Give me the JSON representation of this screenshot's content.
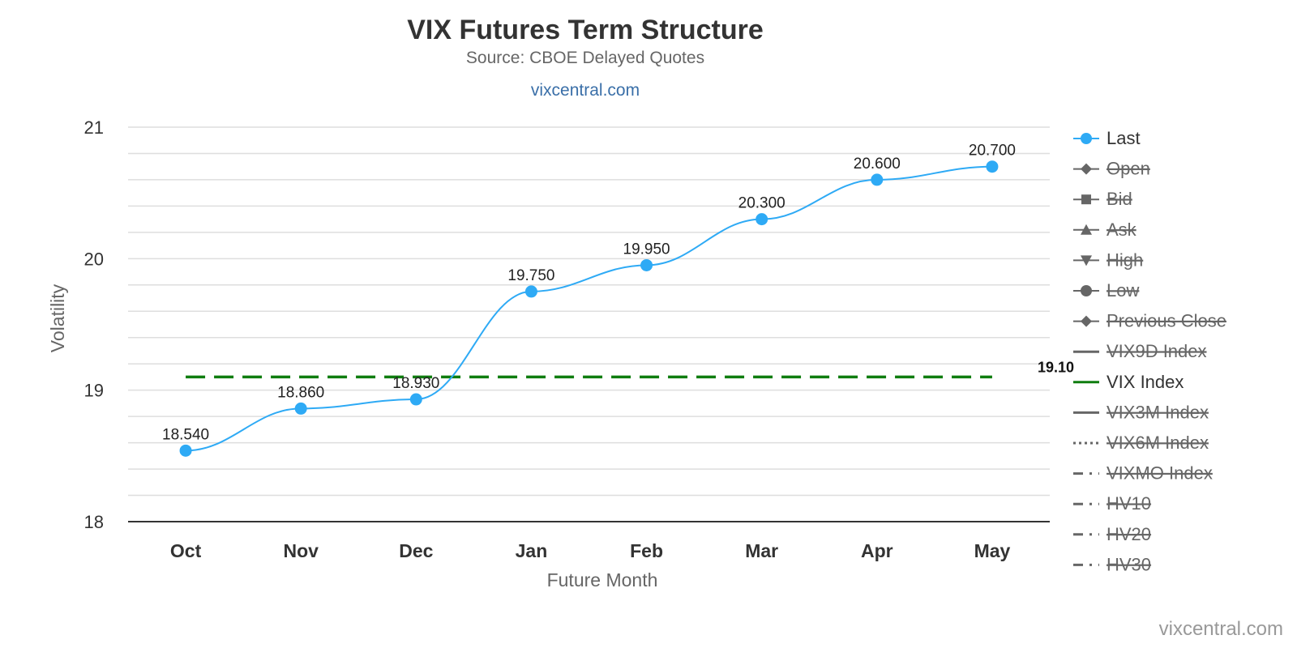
{
  "header": {
    "title": "VIX Futures Term Structure",
    "subtitle": "Source: CBOE Delayed Quotes",
    "link": "vixcentral.com"
  },
  "credit": "vixcentral.com",
  "chart_data": {
    "type": "line",
    "title": "VIX Futures Term Structure",
    "subtitle": "Source: CBOE Delayed Quotes",
    "xlabel": "Future Month",
    "ylabel": "Volatility",
    "categories": [
      "Oct",
      "Nov",
      "Dec",
      "Jan",
      "Feb",
      "Mar",
      "Apr",
      "May"
    ],
    "ylim": [
      18,
      21
    ],
    "yticks": [
      "18",
      "19",
      "20",
      "21"
    ],
    "grid": true,
    "legend_position": "right",
    "series": [
      {
        "name": "Last",
        "values": [
          18.54,
          18.86,
          18.93,
          19.75,
          19.95,
          20.3,
          20.6,
          20.7
        ],
        "data_labels": [
          "18.540",
          "18.860",
          "18.930",
          "19.750",
          "19.950",
          "20.300",
          "20.600",
          "20.700"
        ],
        "color": "#2eaaf5",
        "smooth": true
      }
    ],
    "reference_lines": [
      {
        "name": "VIX Index",
        "value": 19.1,
        "label": "19.10",
        "color": "#0f7d0f",
        "style": "dashed"
      }
    ],
    "legend": [
      {
        "name": "Last",
        "symbol": "circle",
        "visible": true,
        "color": "#2eaaf5"
      },
      {
        "name": "Open",
        "symbol": "diamond",
        "visible": false,
        "color": "#666666"
      },
      {
        "name": "Bid",
        "symbol": "square",
        "visible": false,
        "color": "#666666"
      },
      {
        "name": "Ask",
        "symbol": "triangle",
        "visible": false,
        "color": "#666666"
      },
      {
        "name": "High",
        "symbol": "triangle-down",
        "visible": false,
        "color": "#666666"
      },
      {
        "name": "Low",
        "symbol": "circle",
        "visible": false,
        "color": "#666666"
      },
      {
        "name": "Previous Close",
        "symbol": "diamond",
        "visible": false,
        "color": "#666666"
      },
      {
        "name": "VIX9D Index",
        "symbol": "line-solid",
        "visible": false,
        "color": "#666666"
      },
      {
        "name": "VIX Index",
        "symbol": "line-solid",
        "visible": true,
        "color": "#0f7d0f"
      },
      {
        "name": "VIX3M Index",
        "symbol": "line-solid",
        "visible": false,
        "color": "#666666"
      },
      {
        "name": "VIX6M Index",
        "symbol": "line-dotted",
        "visible": false,
        "color": "#666666"
      },
      {
        "name": "VIXMO Index",
        "symbol": "line-dashdot",
        "visible": false,
        "color": "#666666"
      },
      {
        "name": "HV10",
        "symbol": "line-dashdot",
        "visible": false,
        "color": "#666666"
      },
      {
        "name": "HV20",
        "symbol": "line-dashdot",
        "visible": false,
        "color": "#666666"
      },
      {
        "name": "HV30",
        "symbol": "line-dashdot",
        "visible": false,
        "color": "#666666"
      }
    ]
  }
}
